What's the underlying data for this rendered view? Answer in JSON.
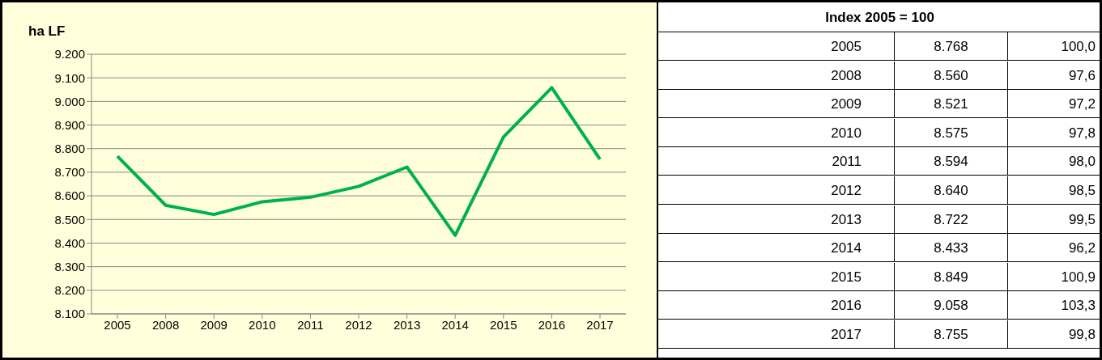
{
  "chart_data": {
    "type": "line",
    "title": "ha LF",
    "categories": [
      "2005",
      "2008",
      "2009",
      "2010",
      "2011",
      "2012",
      "2013",
      "2014",
      "2015",
      "2016",
      "2017"
    ],
    "series": [
      {
        "color": "#00b050",
        "values": [
          8768,
          8560,
          8521,
          8575,
          8594,
          8640,
          8722,
          8433,
          8849,
          9058,
          8755
        ]
      }
    ],
    "ylim": [
      8100,
      9200
    ],
    "yticks": [
      {
        "value": 8100,
        "label": "8.100"
      },
      {
        "value": 8200,
        "label": "8.200"
      },
      {
        "value": 8300,
        "label": "8.300"
      },
      {
        "value": 8400,
        "label": "8.400"
      },
      {
        "value": 8500,
        "label": "8.500"
      },
      {
        "value": 8600,
        "label": "8.600"
      },
      {
        "value": 8700,
        "label": "8.700"
      },
      {
        "value": 8800,
        "label": "8.800"
      },
      {
        "value": 8900,
        "label": "8.900"
      },
      {
        "value": 9000,
        "label": "9.000"
      },
      {
        "value": 9100,
        "label": "9.100"
      },
      {
        "value": 9200,
        "label": "9.200"
      }
    ],
    "grid": "y",
    "marker": "none",
    "line_style": "solid",
    "value_labels": [
      "8.768",
      "8.560",
      "8.521",
      "8.575",
      "8.594",
      "8.640",
      "8.722",
      "8.433",
      "8.849",
      "9.058",
      "8.755"
    ],
    "annotations": [
      "Index 2005 = 100",
      "100,0",
      "97,6",
      "97,2",
      "97,8",
      "98,0",
      "98,5",
      "99,5",
      "96,2",
      "100,9",
      "103,3",
      "99,8"
    ]
  }
}
